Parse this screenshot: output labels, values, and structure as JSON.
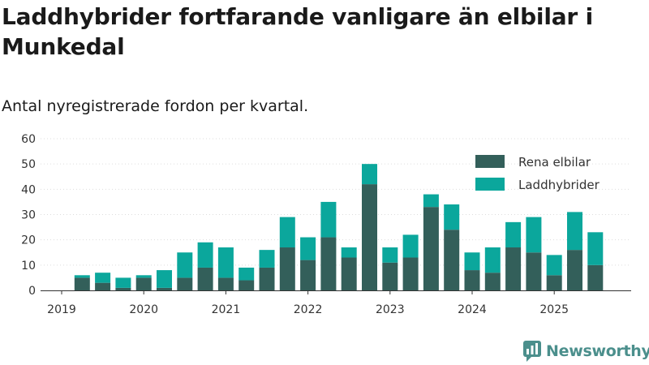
{
  "title": "Laddhybrider fortfarande vanligare än elbilar i Munkedal",
  "subtitle": "Antal nyregistrerade fordon per kvartal.",
  "brand": "Newsworthy",
  "colors": {
    "elbil": "#335f5a",
    "laddhybrid": "#0ba79c",
    "axis": "#333333",
    "brand": "#4b8f8c"
  },
  "chart_data": {
    "type": "bar",
    "stacked": true,
    "title": "Laddhybrider fortfarande vanligare än elbilar i Munkedal",
    "subtitle": "Antal nyregistrerade fordon per kvartal.",
    "xlabel": "",
    "ylabel": "",
    "ylim": [
      0,
      60
    ],
    "yticks": [
      0,
      10,
      20,
      30,
      40,
      50,
      60
    ],
    "year_labels": [
      "2019",
      "2020",
      "2021",
      "2022",
      "2023",
      "2024",
      "2025"
    ],
    "legend_position": "top-right",
    "categories": [
      "2019-Q1",
      "2019-Q2",
      "2019-Q3",
      "2019-Q4",
      "2020-Q1",
      "2020-Q2",
      "2020-Q3",
      "2020-Q4",
      "2021-Q1",
      "2021-Q2",
      "2021-Q3",
      "2021-Q4",
      "2022-Q1",
      "2022-Q2",
      "2022-Q3",
      "2022-Q4",
      "2023-Q1",
      "2023-Q2",
      "2023-Q3",
      "2023-Q4",
      "2024-Q1",
      "2024-Q2",
      "2024-Q3",
      "2024-Q4",
      "2025-Q1",
      "2025-Q2",
      "2025-Q3",
      "2025-Q4"
    ],
    "series": [
      {
        "name": "Rena elbilar",
        "color": "#335f5a",
        "values": [
          null,
          5,
          3,
          1,
          5,
          1,
          5,
          9,
          5,
          4,
          9,
          17,
          12,
          21,
          13,
          42,
          11,
          13,
          33,
          24,
          8,
          7,
          17,
          15,
          6,
          16,
          10,
          null
        ]
      },
      {
        "name": "Laddhybrider",
        "color": "#0ba79c",
        "values": [
          null,
          1,
          4,
          4,
          1,
          7,
          10,
          10,
          12,
          5,
          7,
          12,
          9,
          14,
          4,
          8,
          6,
          9,
          5,
          10,
          7,
          10,
          10,
          14,
          8,
          15,
          13,
          null
        ]
      }
    ]
  }
}
